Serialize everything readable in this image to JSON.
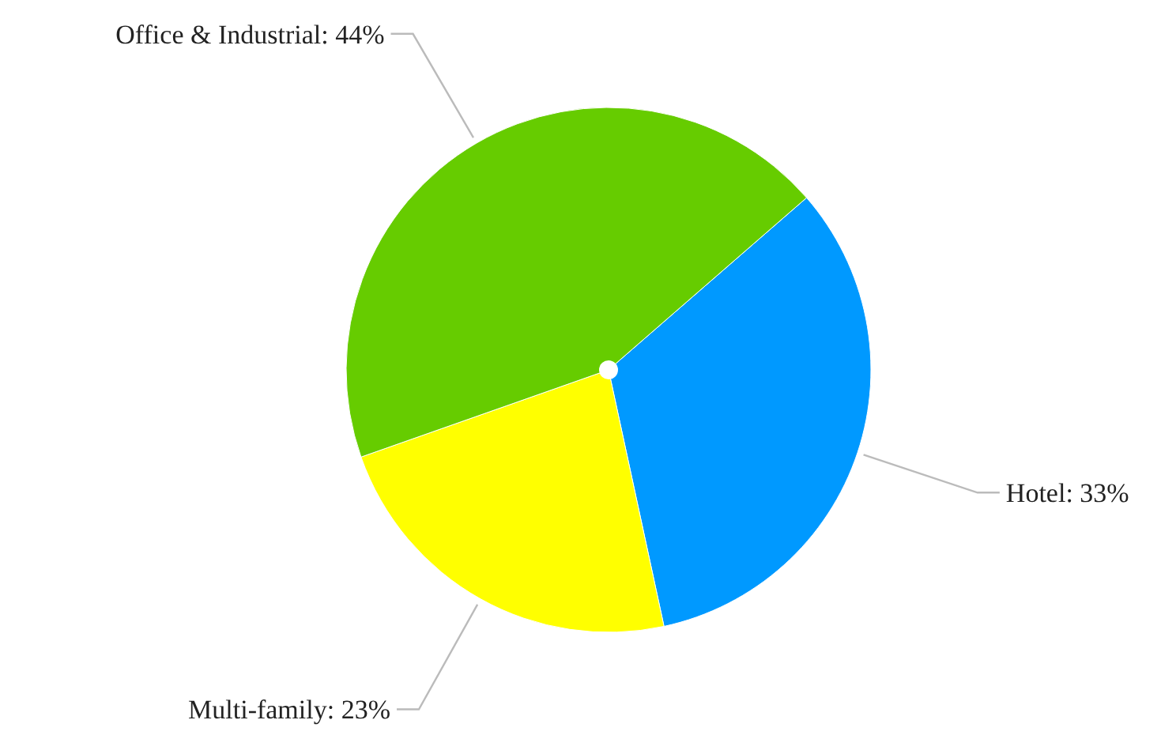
{
  "chart_data": {
    "type": "pie",
    "categories": [
      "Hotel",
      "Multi-family",
      "Office & Industrial"
    ],
    "values": [
      33,
      23,
      44
    ],
    "colors": [
      "#0099ff",
      "#ffff00",
      "#66cc00"
    ],
    "value_labels": [
      ": 33%",
      ": 23%",
      ": 44%"
    ]
  }
}
